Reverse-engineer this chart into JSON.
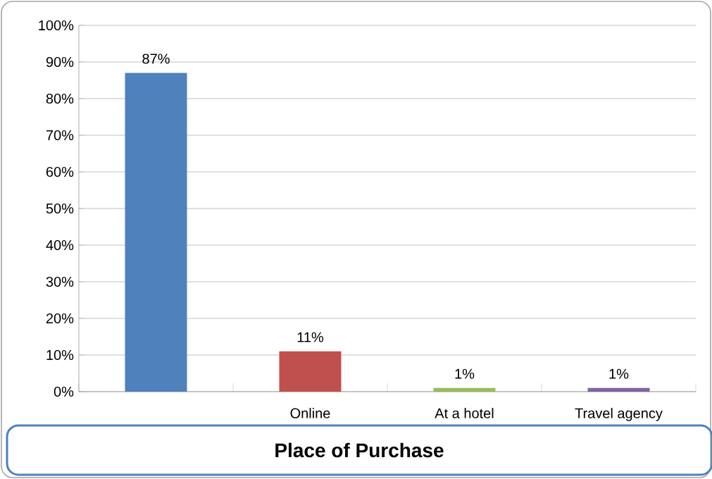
{
  "chart_data": {
    "type": "bar",
    "title": "Place of Purchase",
    "categories": [
      null,
      "Online",
      "At a hotel",
      "Travel agency"
    ],
    "values": [
      87,
      11,
      1,
      1
    ],
    "colors": [
      "#4f81bd",
      "#c0504d",
      "#9bbb59",
      "#8064a2"
    ],
    "value_labels": [
      "87%",
      "11%",
      "1%",
      "1%"
    ],
    "ylim": [
      0,
      100
    ],
    "yticks": [
      {
        "value": 0,
        "label": "0%"
      },
      {
        "value": 10,
        "label": "10%"
      },
      {
        "value": 20,
        "label": "20%"
      },
      {
        "value": 30,
        "label": "30%"
      },
      {
        "value": 40,
        "label": "40%"
      },
      {
        "value": 50,
        "label": "50%"
      },
      {
        "value": 60,
        "label": "60%"
      },
      {
        "value": 70,
        "label": "70%"
      },
      {
        "value": 80,
        "label": "80%"
      },
      {
        "value": 90,
        "label": "90%"
      },
      {
        "value": 100,
        "label": "100%"
      }
    ],
    "grid": "y"
  }
}
